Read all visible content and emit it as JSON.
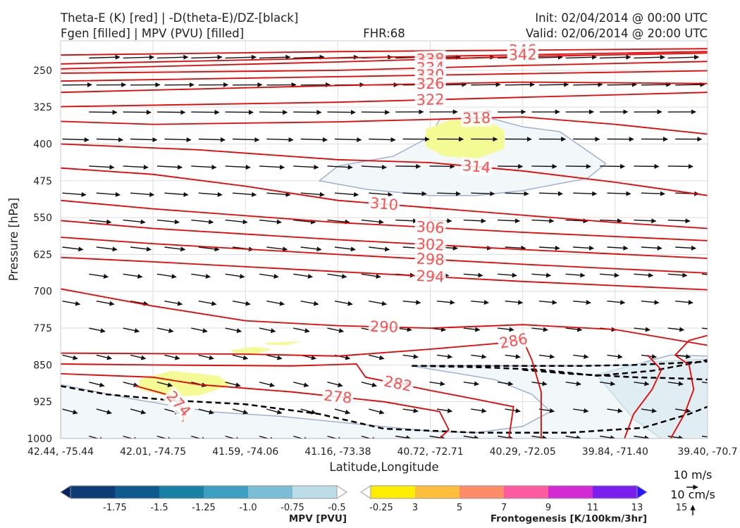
{
  "chart_data": {
    "type": "cross-section",
    "titles": {
      "left_line1": "Theta-E (K) [red] | -D(theta-E)/DZ-[black]",
      "left_line2": "Fgen [filled] | MPV (PVU) [filled]",
      "center": "FHR:68",
      "right_line1": "Init: 02/04/2014 @ 00:00 UTC",
      "right_line2": "Valid: 02/06/2014 @ 20:00 UTC"
    },
    "xlabel": "Latitude,Longitude",
    "ylabel": "Pressure [hPa]",
    "x_ticks": [
      "42.44, -75.44",
      "42.01, -74.75",
      "41.59, -74.06",
      "41.16, -73.38",
      "40.72, -72.71",
      "40.29, -72.05",
      "39.84, -71.40",
      "39.40, -70.7"
    ],
    "y_ticks": [
      250,
      325,
      400,
      475,
      550,
      625,
      700,
      775,
      850,
      925,
      1000
    ],
    "ylim": [
      1000,
      190
    ],
    "theta_e_contours": [
      {
        "value": 346,
        "label": "346",
        "points": [
          [
            0,
            219
          ],
          [
            3,
            212
          ],
          [
            7,
            206
          ]
        ]
      },
      {
        "value": 342,
        "label": "342",
        "points": [
          [
            0,
            237
          ],
          [
            3,
            225
          ],
          [
            7,
            212
          ]
        ]
      },
      {
        "value": 338,
        "label": "338",
        "points": [
          [
            0,
            247
          ],
          [
            3,
            233
          ],
          [
            5,
            222
          ],
          [
            7,
            215
          ]
        ]
      },
      {
        "value": 334,
        "label": "334",
        "points": [
          [
            0,
            256
          ],
          [
            3,
            250
          ],
          [
            5,
            240
          ],
          [
            7,
            232
          ]
        ]
      },
      {
        "value": 330,
        "label": "330",
        "points": [
          [
            0,
            272
          ],
          [
            3,
            263
          ],
          [
            5,
            257
          ],
          [
            7,
            251
          ]
        ]
      },
      {
        "value": 326,
        "label": "326",
        "points": [
          [
            0,
            295
          ],
          [
            3,
            281
          ],
          [
            5,
            274
          ],
          [
            7,
            277
          ]
        ]
      },
      {
        "value": 322,
        "label": "322",
        "points": [
          [
            0,
            324
          ],
          [
            3,
            315
          ],
          [
            5,
            305
          ],
          [
            7,
            295
          ]
        ]
      },
      {
        "value": 318,
        "label": "318",
        "points": [
          [
            0,
            354
          ],
          [
            1,
            360
          ],
          [
            3,
            355
          ],
          [
            4,
            350
          ],
          [
            5,
            345
          ],
          [
            6,
            360
          ],
          [
            7,
            380
          ]
        ]
      },
      {
        "value": 314,
        "label": "314",
        "points": [
          [
            0,
            400
          ],
          [
            1.5,
            412
          ],
          [
            3,
            432
          ],
          [
            4,
            438
          ],
          [
            5,
            455
          ],
          [
            6,
            478
          ],
          [
            7,
            505
          ]
        ]
      },
      {
        "value": 310,
        "label": "310",
        "points": [
          [
            0,
            449
          ],
          [
            1,
            462
          ],
          [
            2,
            486
          ],
          [
            3,
            515
          ],
          [
            4,
            530
          ],
          [
            5,
            545
          ],
          [
            6,
            560
          ],
          [
            7,
            572
          ]
        ]
      },
      {
        "value": 306,
        "label": "306",
        "points": [
          [
            0,
            515
          ],
          [
            1,
            532
          ],
          [
            3,
            560
          ],
          [
            5,
            580
          ],
          [
            7,
            597
          ]
        ]
      },
      {
        "value": 302,
        "label": "302",
        "points": [
          [
            0,
            556
          ],
          [
            1,
            572
          ],
          [
            3,
            595
          ],
          [
            5,
            615
          ],
          [
            7,
            633
          ]
        ]
      },
      {
        "value": 298,
        "label": "298",
        "points": [
          [
            0,
            590
          ],
          [
            1,
            603
          ],
          [
            3,
            625
          ],
          [
            5,
            645
          ],
          [
            7,
            663
          ]
        ]
      },
      {
        "value": 294,
        "label": "294",
        "points": [
          [
            0,
            631
          ],
          [
            1,
            640
          ],
          [
            3,
            660
          ],
          [
            5,
            680
          ],
          [
            7,
            697
          ]
        ]
      },
      {
        "value": 290,
        "label": "290",
        "points": [
          [
            0,
            695
          ],
          [
            1,
            730
          ],
          [
            2,
            760
          ],
          [
            3,
            770
          ],
          [
            4,
            775
          ],
          [
            5,
            768
          ],
          [
            6,
            778
          ],
          [
            7,
            810
          ]
        ]
      },
      {
        "value": 286,
        "label": "286",
        "points": [
          [
            0,
            826
          ],
          [
            2,
            828
          ],
          [
            3,
            832
          ],
          [
            4,
            818
          ],
          [
            4.8,
            805
          ],
          [
            5,
            798
          ],
          [
            5.1,
            840
          ],
          [
            5.2,
            905
          ],
          [
            5.2,
            1000
          ]
        ]
      },
      {
        "value": 282,
        "label": "282",
        "points": [
          [
            0,
            848
          ],
          [
            1,
            850
          ],
          [
            2.5,
            852
          ],
          [
            3.2,
            848
          ],
          [
            3.3,
            875
          ],
          [
            4,
            902
          ],
          [
            4.5,
            920
          ],
          [
            4.9,
            935
          ],
          [
            4.85,
            1000
          ]
        ]
      },
      {
        "value": 278,
        "label": "278",
        "points": [
          [
            0,
            868
          ],
          [
            1,
            875
          ],
          [
            1.5,
            890
          ],
          [
            2.5,
            905
          ],
          [
            3.5,
            925
          ],
          [
            4.1,
            945
          ],
          [
            4.2,
            982
          ],
          [
            4.1,
            1000
          ]
        ]
      },
      {
        "value": 274,
        "label": "274",
        "points": [
          [
            0.8,
            892
          ],
          [
            1.2,
            913
          ],
          [
            1.35,
            945
          ],
          [
            1.32,
            965
          ]
        ]
      },
      {
        "value": 290,
        "label": "",
        "points": [
          [
            6.1,
            1000
          ],
          [
            6.2,
            950
          ],
          [
            6.4,
            900
          ],
          [
            6.5,
            860
          ],
          [
            6.35,
            830
          ]
        ]
      },
      {
        "value": 286,
        "label": "",
        "points": [
          [
            6.6,
            1000
          ],
          [
            6.75,
            950
          ],
          [
            6.85,
            900
          ],
          [
            6.8,
            850
          ],
          [
            6.65,
            830
          ],
          [
            6.8,
            800
          ],
          [
            7,
            790
          ]
        ]
      }
    ],
    "mpv_filled": [
      {
        "level": -0.25,
        "color": "#f2f8f9",
        "outline": "#a0b0d4",
        "points": [
          [
            2.8,
            475
          ],
          [
            3.0,
            445
          ],
          [
            3.6,
            425
          ],
          [
            4.0,
            385
          ],
          [
            4.1,
            350
          ],
          [
            4.6,
            345
          ],
          [
            5.0,
            365
          ],
          [
            5.4,
            375
          ],
          [
            5.9,
            440
          ],
          [
            5.7,
            470
          ],
          [
            5.0,
            495
          ],
          [
            4.5,
            505
          ],
          [
            4.0,
            505
          ],
          [
            3.3,
            492
          ]
        ]
      },
      {
        "level": -0.25,
        "color": "#f2f8f9",
        "outline": "#a0b0d4",
        "points": [
          [
            0,
            890
          ],
          [
            0.8,
            920
          ],
          [
            1.6,
            945
          ],
          [
            2.4,
            955
          ],
          [
            3.2,
            970
          ],
          [
            4.0,
            985
          ],
          [
            4.5,
            988
          ],
          [
            5.0,
            975
          ],
          [
            5.3,
            945
          ],
          [
            5.1,
            910
          ],
          [
            4.7,
            880
          ],
          [
            3.8,
            852
          ],
          [
            4.6,
            852
          ],
          [
            5.6,
            852
          ],
          [
            6.2,
            850
          ],
          [
            6.6,
            830
          ],
          [
            7,
            832
          ],
          [
            7,
            1000
          ],
          [
            0,
            1000
          ]
        ]
      },
      {
        "level": -0.5,
        "color": "#e0eef4",
        "outline": "#c4d9e3",
        "points": [
          [
            5.8,
            870
          ],
          [
            6.3,
            845
          ],
          [
            6.8,
            840
          ],
          [
            7,
            838
          ],
          [
            7,
            1000
          ],
          [
            6.5,
            1000
          ],
          [
            6.2,
            960
          ],
          [
            6.0,
            915
          ]
        ]
      }
    ],
    "fgen_filled": [
      {
        "level": 3,
        "color": "#f4fb95",
        "points": [
          [
            3.95,
            370
          ],
          [
            4.2,
            352
          ],
          [
            4.6,
            350
          ],
          [
            4.8,
            372
          ],
          [
            4.8,
            410
          ],
          [
            4.5,
            430
          ],
          [
            4.15,
            425
          ],
          [
            3.95,
            405
          ]
        ]
      },
      {
        "level": 3,
        "color": "#f4fb95",
        "points": [
          [
            0.85,
            880
          ],
          [
            1.2,
            862
          ],
          [
            1.7,
            872
          ],
          [
            1.85,
            890
          ],
          [
            1.5,
            912
          ],
          [
            1.2,
            915
          ],
          [
            0.85,
            900
          ]
        ]
      },
      {
        "level": 3,
        "color": "#f4fb95",
        "points": [
          [
            1.85,
            820
          ],
          [
            2.1,
            813
          ],
          [
            2.3,
            818
          ],
          [
            2.1,
            828
          ],
          [
            1.85,
            825
          ]
        ]
      },
      {
        "level": 3,
        "color": "#f4fb95",
        "points": [
          [
            2.2,
            805
          ],
          [
            2.6,
            802
          ],
          [
            2.45,
            810
          ],
          [
            2.25,
            809
          ]
        ]
      }
    ],
    "dthetae_dz_contours": [
      {
        "points": [
          [
            0,
            893
          ],
          [
            0.5,
            910
          ],
          [
            1.2,
            922
          ],
          [
            2,
            930
          ],
          [
            2.8,
            950
          ],
          [
            3.5,
            980
          ],
          [
            4.5,
            988
          ],
          [
            5.5,
            988
          ],
          [
            6.3,
            978
          ],
          [
            6.8,
            950
          ],
          [
            7,
            935
          ]
        ]
      },
      {
        "points": [
          [
            3.8,
            852
          ],
          [
            4.6,
            852
          ],
          [
            5.6,
            852
          ],
          [
            6.2,
            850
          ],
          [
            6.8,
            845
          ],
          [
            7,
            843
          ]
        ]
      },
      {
        "points": [
          [
            3.9,
            852
          ],
          [
            4.6,
            855
          ],
          [
            5.2,
            860
          ],
          [
            5.8,
            872
          ],
          [
            6.4,
            862
          ],
          [
            6.8,
            848
          ],
          [
            7,
            840
          ]
        ]
      },
      {
        "points": [
          [
            5.0,
            860
          ],
          [
            5.5,
            868
          ],
          [
            6.2,
            875
          ],
          [
            6.8,
            878
          ],
          [
            7,
            880
          ]
        ]
      }
    ],
    "wind_key": {
      "horizontal": "10 m/s",
      "vertical": "10 cm/s"
    },
    "colorbars": [
      {
        "name": "MPV",
        "label": "MPV [PVU]",
        "ticks": [
          "-1.75",
          "-1.5",
          "-1.25",
          "-1.0",
          "-0.75",
          "-0.5",
          "-0.25"
        ],
        "colors": [
          "#08205e",
          "#0c3b75",
          "#0e5a8c",
          "#1880a5",
          "#3c9ec0",
          "#7bbdd4",
          "#bcdde8",
          "#ffffff"
        ]
      },
      {
        "name": "Frontogenesis",
        "label": "Frontogenesis [K/100km/3hr]",
        "ticks": [
          "3",
          "5",
          "7",
          "9",
          "11",
          "13",
          "15"
        ],
        "colors": [
          "#ffffff",
          "#ffee00",
          "#ffbe3c",
          "#ff8b68",
          "#ff5aa0",
          "#d22ad2",
          "#7a1ef0",
          "#2a14ff"
        ]
      }
    ]
  }
}
